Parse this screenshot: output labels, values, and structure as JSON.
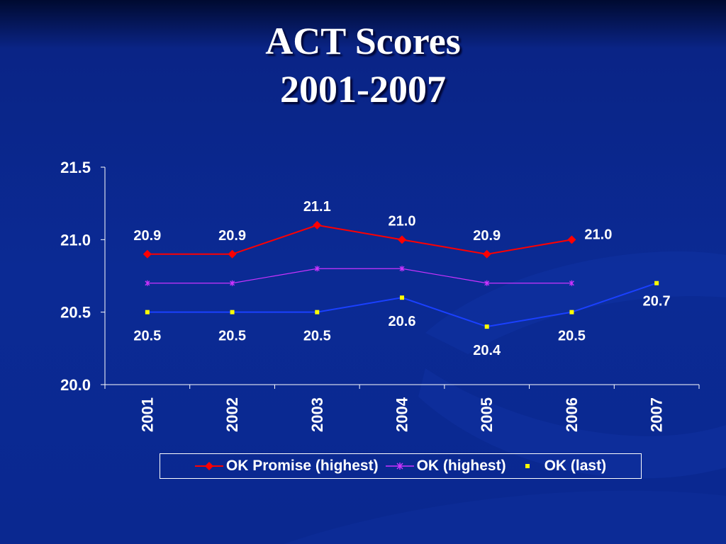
{
  "slide": {
    "title_line1": "ACT Scores",
    "title_line2": "2001-2007"
  },
  "colors": {
    "background": "#0b2a94",
    "text": "#ffffff",
    "ok_promise_highest": "#ff0000",
    "ok_highest": "#cc33ff",
    "ok_last": "#1a40ff",
    "ok_last_marker": "#ffff00"
  },
  "chart_data": {
    "type": "line",
    "title": "ACT Scores 2001-2007",
    "xlabel": "",
    "ylabel": "",
    "categories": [
      "2001",
      "2002",
      "2003",
      "2004",
      "2005",
      "2006",
      "2007"
    ],
    "ylim": [
      20.0,
      21.5
    ],
    "yticks": [
      20.0,
      20.5,
      21.0,
      21.5
    ],
    "ytick_labels": [
      "20.0",
      "20.5",
      "21.0",
      "21.5"
    ],
    "grid": false,
    "legend_position": "bottom",
    "series": [
      {
        "name": "OK Promise (highest)",
        "marker": "diamond",
        "values": [
          20.9,
          20.9,
          21.1,
          21.0,
          20.9,
          21.0,
          null
        ],
        "labels": [
          "20.9",
          "20.9",
          "21.1",
          "21.0",
          "20.9",
          "21.0",
          null
        ],
        "label_side": [
          "above",
          "above",
          "above",
          "above",
          "above",
          "right",
          null
        ]
      },
      {
        "name": "OK (highest)",
        "marker": "star",
        "values": [
          20.7,
          20.7,
          20.8,
          20.8,
          20.7,
          20.7,
          null
        ],
        "labels": [
          null,
          null,
          null,
          null,
          null,
          null,
          null
        ],
        "label_side": [
          null,
          null,
          null,
          null,
          null,
          null,
          null
        ]
      },
      {
        "name": "OK (last)",
        "marker": "square",
        "values": [
          20.5,
          20.5,
          20.5,
          20.6,
          20.4,
          20.5,
          20.7
        ],
        "labels": [
          "20.5",
          "20.5",
          "20.5",
          "20.6",
          "20.4",
          "20.5",
          "20.7"
        ],
        "label_side": [
          "below",
          "below",
          "below",
          "below",
          "below",
          "below",
          "below"
        ]
      }
    ]
  }
}
